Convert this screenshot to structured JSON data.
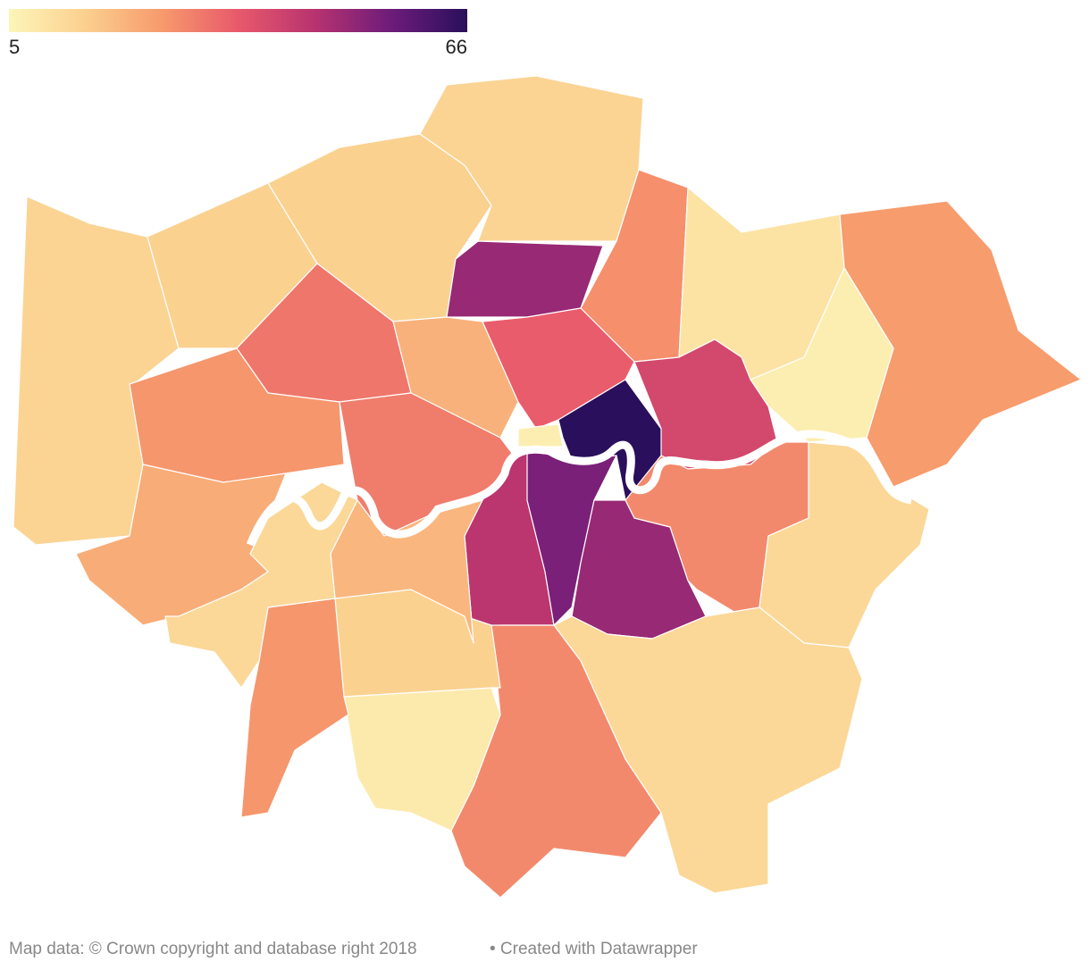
{
  "legend": {
    "min": 5,
    "max": 66,
    "colors": [
      "#fcf5b9",
      "#fbd08f",
      "#f79a6c",
      "#e8596b",
      "#b8336f",
      "#6d1c7a",
      "#2a0f5c"
    ]
  },
  "regions": [
    {
      "value": 14
    },
    {
      "value": 15
    },
    {
      "value": 15
    },
    {
      "value": 14
    },
    {
      "value": 27
    },
    {
      "value": 10
    },
    {
      "value": 25
    },
    {
      "value": 7
    },
    {
      "value": 31
    },
    {
      "value": 26
    },
    {
      "value": 22
    },
    {
      "value": 50
    },
    {
      "value": 21
    },
    {
      "value": 35
    },
    {
      "value": 66
    },
    {
      "value": 40
    },
    {
      "value": 30
    },
    {
      "value": 7
    },
    {
      "value": 45
    },
    {
      "value": 54
    },
    {
      "value": 50
    },
    {
      "value": 28
    },
    {
      "value": 13
    },
    {
      "value": 13
    },
    {
      "value": 28
    },
    {
      "value": 8
    },
    {
      "value": 15
    },
    {
      "value": 20
    },
    {
      "value": 26
    },
    {
      "value": 13
    }
  ],
  "footer": {
    "source": "Map data: © Crown copyright and database right 2018",
    "credit": "• Created with Datawrapper"
  }
}
